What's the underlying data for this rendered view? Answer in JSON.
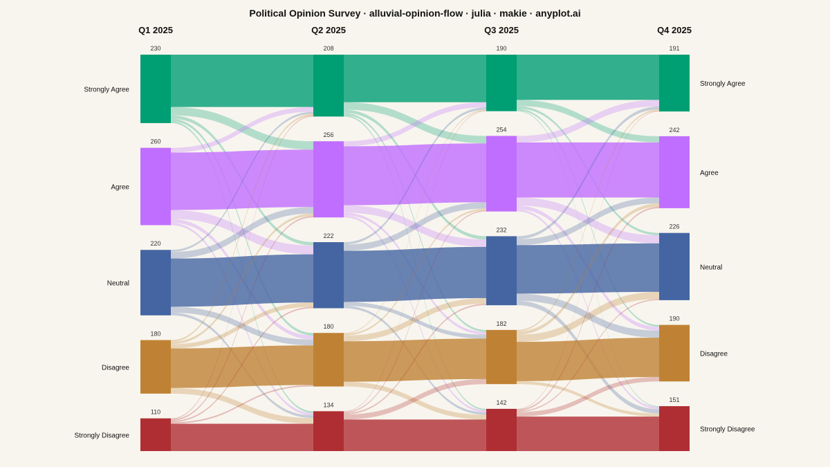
{
  "title": "Political Opinion Survey · alluvial-opinion-flow · julia · makie · anyplot.ai",
  "chart_data": {
    "type": "alluvial",
    "columns": [
      "Q1 2025",
      "Q2 2025",
      "Q3 2025",
      "Q4 2025"
    ],
    "categories": [
      "Strongly Agree",
      "Agree",
      "Neutral",
      "Disagree",
      "Strongly Disagree"
    ],
    "colors": {
      "Strongly Agree": "#009E73",
      "Agree": "#C06EFF",
      "Neutral": "#4465A2",
      "Disagree": "#BF8234",
      "Strongly Disagree": "#AF2E33"
    },
    "totals": [
      [
        230,
        260,
        220,
        180,
        110
      ],
      [
        208,
        256,
        222,
        180,
        134
      ],
      [
        190,
        254,
        232,
        182,
        142
      ],
      [
        191,
        242,
        226,
        190,
        151
      ]
    ],
    "flows": [
      [
        [
          176,
          28,
          11,
          9,
          6
        ],
        [
          16,
          193,
          30,
          13,
          8
        ],
        [
          7,
          22,
          162,
          20,
          9
        ],
        [
          6,
          8,
          14,
          133,
          19
        ],
        [
          3,
          5,
          5,
          5,
          92
        ]
      ],
      [
        [
          160,
          25,
          11,
          7,
          5
        ],
        [
          17,
          198,
          25,
          9,
          7
        ],
        [
          8,
          21,
          172,
          13,
          8
        ],
        [
          3,
          6,
          19,
          136,
          16
        ],
        [
          2,
          4,
          5,
          17,
          106
        ]
      ],
      [
        [
          152,
          21,
          8,
          6,
          3
        ],
        [
          22,
          185,
          27,
          13,
          7
        ],
        [
          10,
          20,
          163,
          24,
          15
        ],
        [
          5,
          11,
          24,
          132,
          10
        ],
        [
          2,
          5,
          4,
          15,
          116
        ]
      ]
    ]
  }
}
